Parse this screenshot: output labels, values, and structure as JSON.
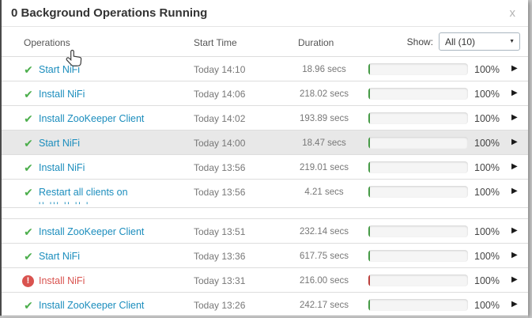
{
  "dialog": {
    "title": "0 Background Operations Running",
    "close_glyph": "x"
  },
  "table": {
    "headers": {
      "operations": "Operations",
      "start_time": "Start Time",
      "duration": "Duration"
    },
    "show_filter": {
      "label": "Show:",
      "selected_option": "All (10)",
      "caret_glyph": "▼"
    }
  },
  "icons": {
    "success_glyph": "✔",
    "error_glyph": "!",
    "expand_glyph": "▶"
  },
  "colors": {
    "success_bar": "#4cae4c",
    "error_bar": "#cc4844",
    "error_text": "#d9534f",
    "link": "#1b8dbd",
    "row_highlight": "#e8e8e8"
  },
  "rows": [
    {
      "status": "success",
      "name": "Start NiFi",
      "start": "Today 14:10",
      "duration": "18.96 secs",
      "progress": "100%",
      "cursor_over": true
    },
    {
      "status": "success",
      "name": "Install NiFi",
      "start": "Today 14:06",
      "duration": "218.02 secs",
      "progress": "100%"
    },
    {
      "status": "success",
      "name": "Install ZooKeeper Client",
      "start": "Today 14:02",
      "duration": "193.89 secs",
      "progress": "100%"
    },
    {
      "status": "success",
      "name": "Start NiFi",
      "start": "Today 14:00",
      "duration": "18.47 secs",
      "progress": "100%",
      "highlighted": true
    },
    {
      "status": "success",
      "name": "Install NiFi",
      "start": "Today 13:56",
      "duration": "219.01 secs",
      "progress": "100%"
    },
    {
      "status": "success",
      "name": "Restart all clients on",
      "name_line2_clipped": "'' ''' ''      '' '",
      "start": "Today 13:56",
      "duration": "4.21 secs",
      "progress": "100%",
      "tall": true,
      "gap_after": true
    },
    {
      "status": "success",
      "name": "Install ZooKeeper Client",
      "start": "Today 13:51",
      "duration": "232.14 secs",
      "progress": "100%"
    },
    {
      "status": "success",
      "name": "Start NiFi",
      "start": "Today 13:36",
      "duration": "617.75 secs",
      "progress": "100%"
    },
    {
      "status": "error",
      "name": "Install NiFi",
      "start": "Today 13:31",
      "duration": "216.00 secs",
      "progress": "100%"
    },
    {
      "status": "success",
      "name": "Install ZooKeeper Client",
      "start": "Today 13:26",
      "duration": "242.17 secs",
      "progress": "100%"
    }
  ]
}
